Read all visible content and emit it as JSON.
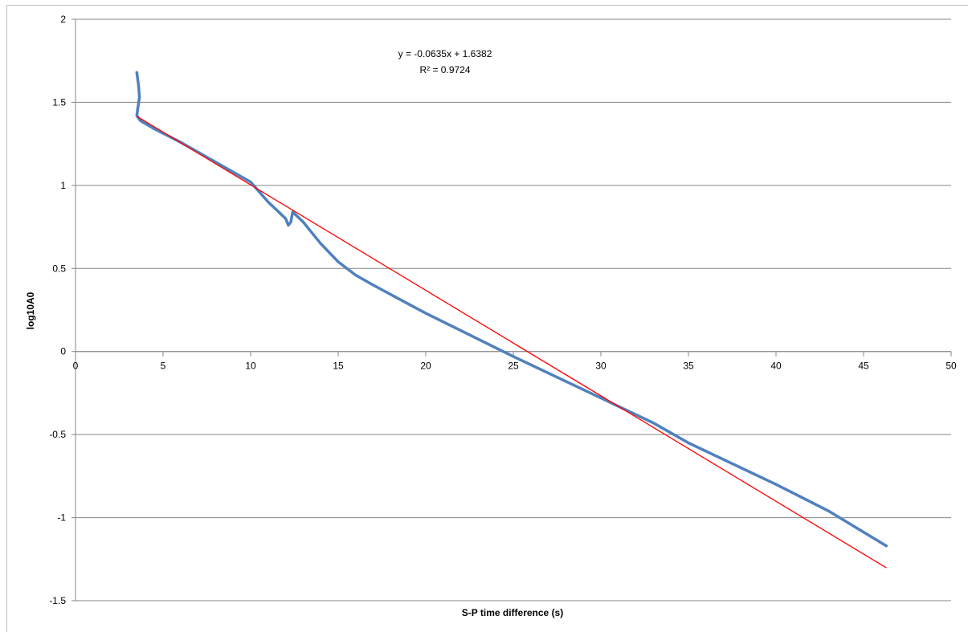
{
  "chart_data": {
    "type": "line",
    "title": "",
    "xlabel": "S-P time difference (s)",
    "ylabel": "log10A0",
    "xlim": [
      0,
      50
    ],
    "ylim": [
      -1.5,
      2
    ],
    "x_ticks": [
      "0",
      "5",
      "10",
      "15",
      "20",
      "25",
      "30",
      "35",
      "40",
      "45",
      "50"
    ],
    "y_ticks": [
      "2",
      "1.5",
      "1",
      "0.5",
      "0",
      "-0.5",
      "-1",
      "-1.5"
    ],
    "grid": "horizontal",
    "legend": "none",
    "series": [
      {
        "color": "#4f81bd",
        "points": [
          [
            3.5,
            1.68
          ],
          [
            3.6,
            1.6
          ],
          [
            3.65,
            1.53
          ],
          [
            3.55,
            1.46
          ],
          [
            3.5,
            1.42
          ],
          [
            3.7,
            1.39
          ],
          [
            4.5,
            1.34
          ],
          [
            6,
            1.26
          ],
          [
            8,
            1.14
          ],
          [
            10,
            1.02
          ],
          [
            11,
            0.9
          ],
          [
            12,
            0.8
          ],
          [
            12.15,
            0.76
          ],
          [
            12.3,
            0.78
          ],
          [
            12.4,
            0.84
          ],
          [
            13,
            0.78
          ],
          [
            14,
            0.65
          ],
          [
            15,
            0.54
          ],
          [
            16,
            0.46
          ],
          [
            17,
            0.4
          ],
          [
            20,
            0.23
          ],
          [
            25,
            -0.03
          ],
          [
            30,
            -0.28
          ],
          [
            33,
            -0.43
          ],
          [
            35,
            -0.55
          ],
          [
            40,
            -0.8
          ],
          [
            43,
            -0.96
          ],
          [
            46.3,
            -1.17
          ]
        ]
      },
      {
        "name": "trendline",
        "color": "#ff0000",
        "slope": -0.0635,
        "intercept": 1.6382,
        "x_range": [
          3.5,
          46.3
        ]
      }
    ],
    "annotations": [
      "y = -0.0635x + 1.6382",
      "R² = 0.9724"
    ]
  }
}
